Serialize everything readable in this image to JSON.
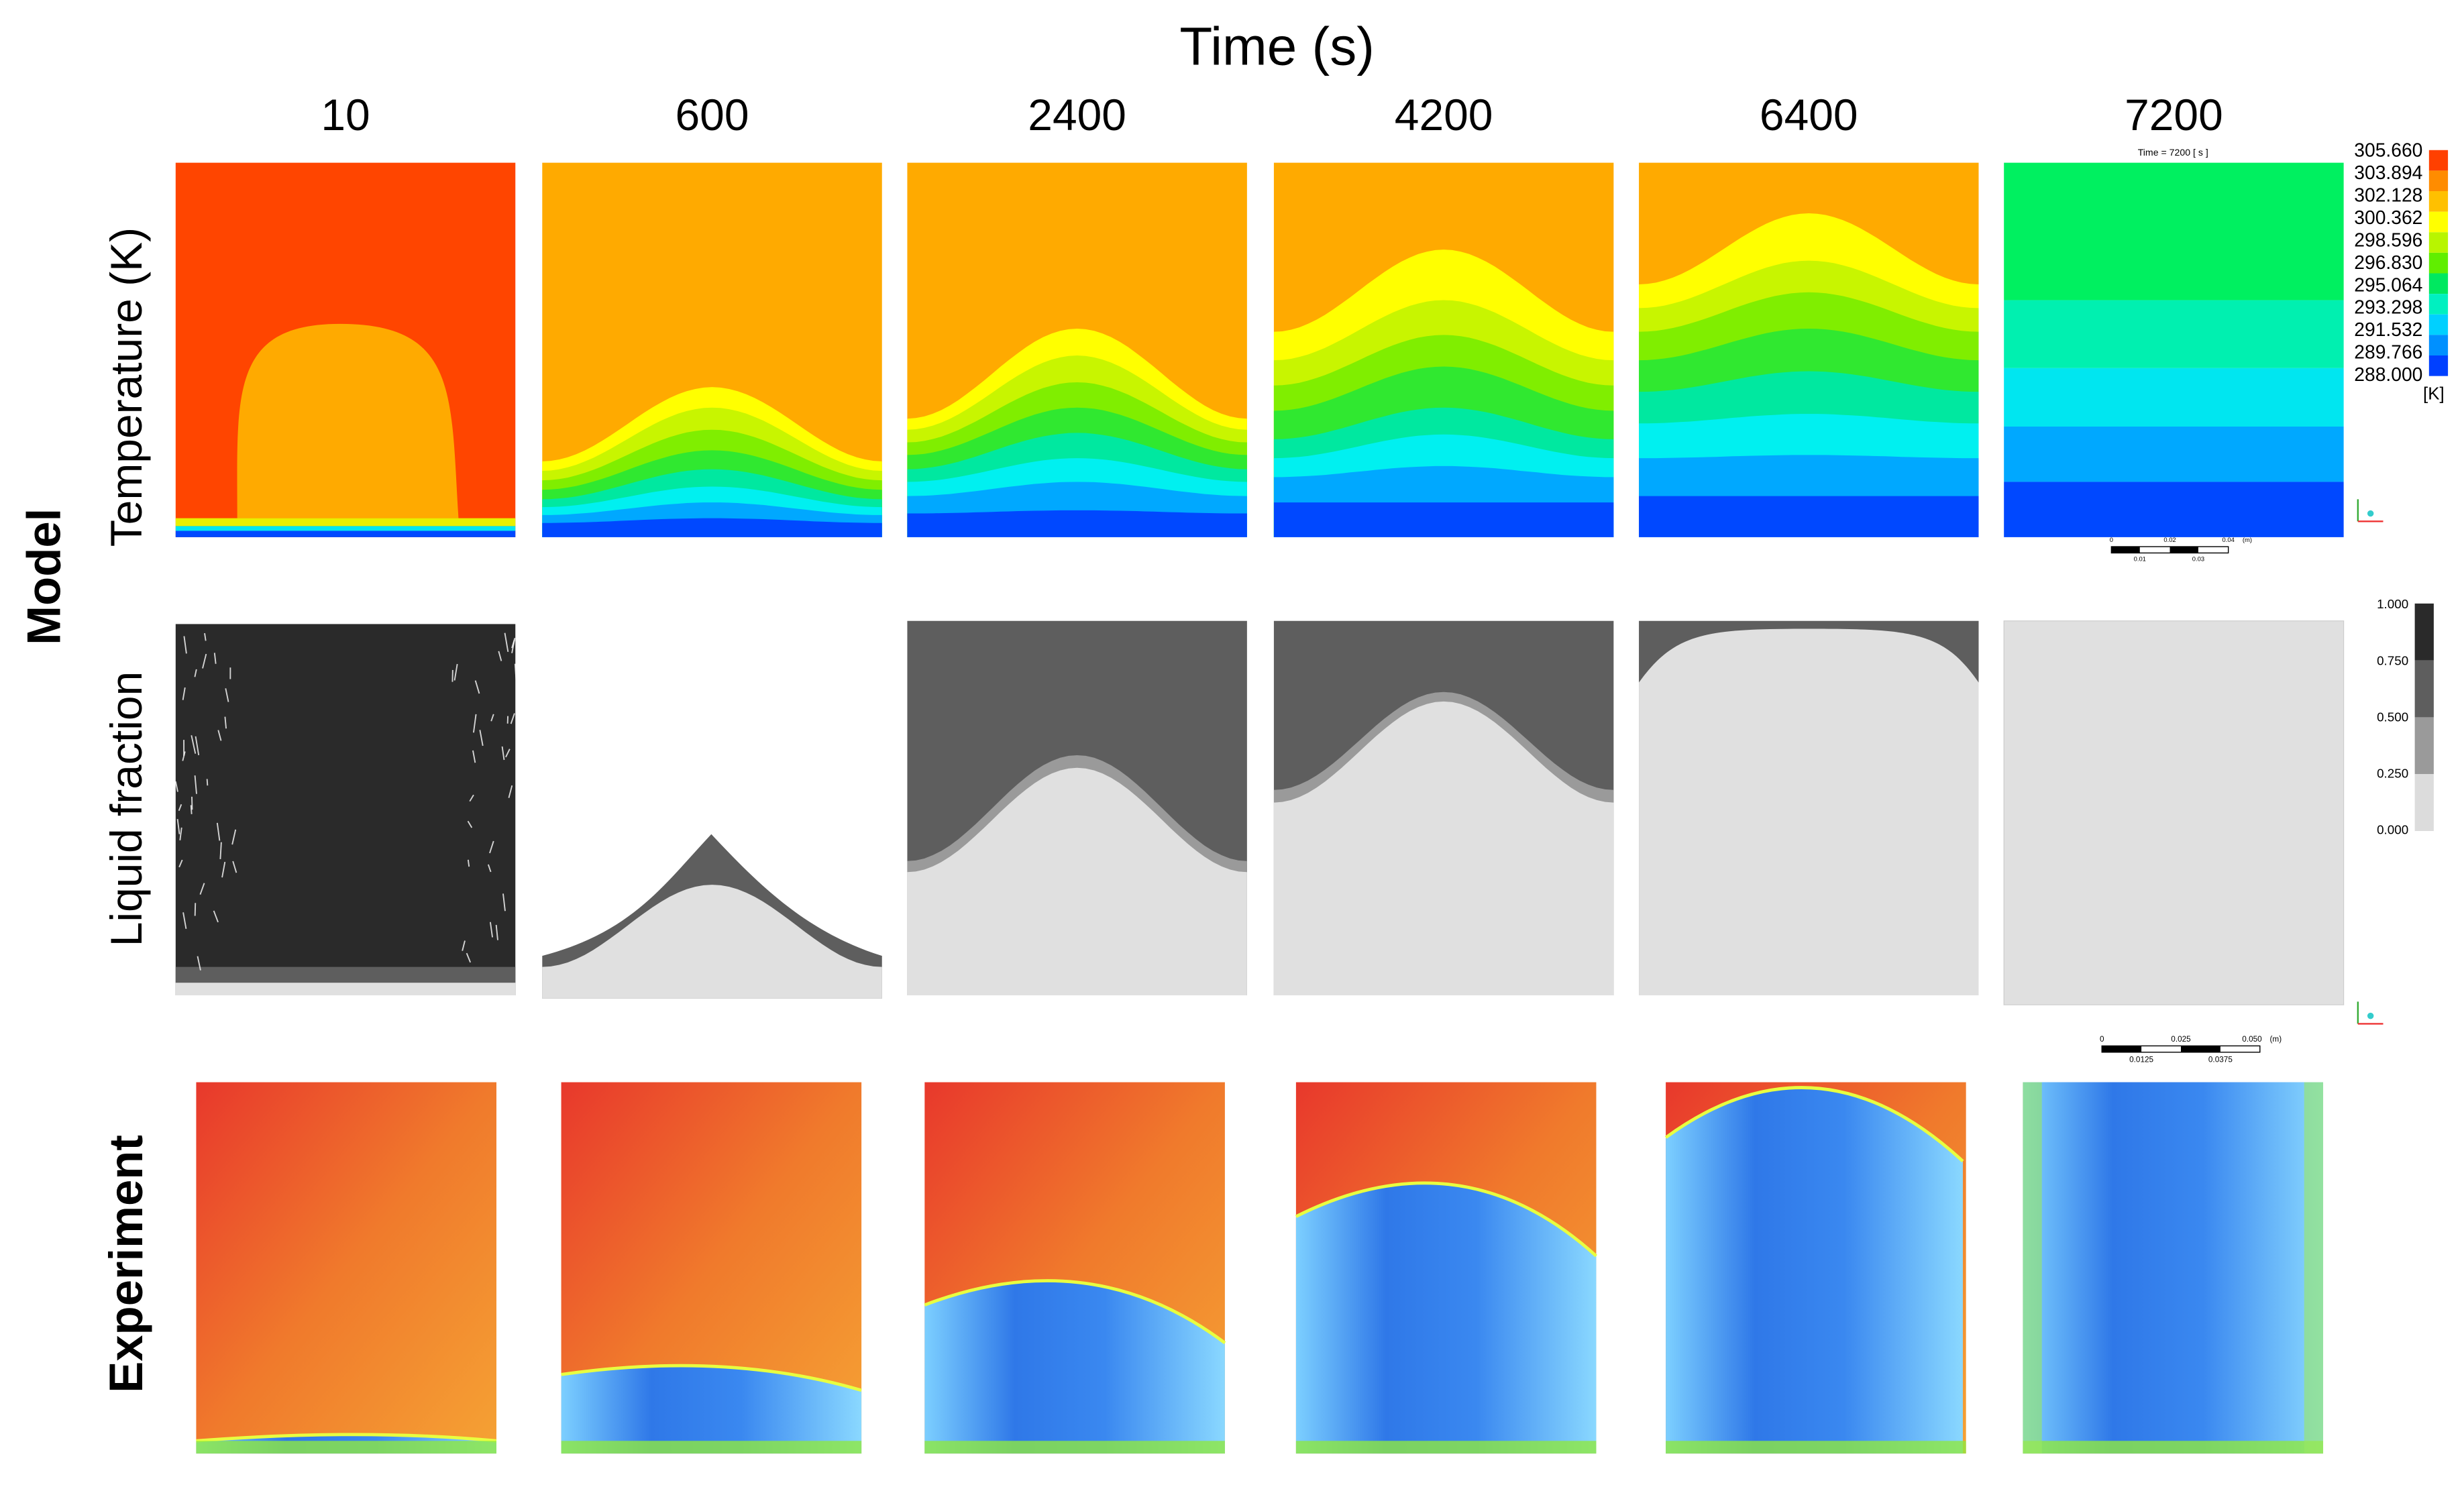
{
  "title": "Time (s)",
  "times": [
    "10",
    "600",
    "2400",
    "4200",
    "6400",
    "7200"
  ],
  "rows": {
    "model": "Model",
    "experiment": "Experiment",
    "temperature": "Temperature (K)",
    "liquid_fraction": "Liquid fraction"
  },
  "temperature_legend": {
    "time_stamp": "Time = 7200 [ s ]",
    "labels": [
      "305.660",
      "303.894",
      "302.128",
      "300.362",
      "298.596",
      "296.830",
      "295.064",
      "293.298",
      "291.532",
      "289.766",
      "288.000"
    ],
    "unit": "[K]"
  },
  "temperature_scale_bar": {
    "top": [
      "0",
      "0.02",
      "0.04",
      "(m)"
    ],
    "bottom": [
      "0.01",
      "0.03"
    ]
  },
  "liquid_fraction_legend": {
    "labels": [
      "1.000",
      "0.750",
      "0.500",
      "0.250",
      "0.000"
    ]
  },
  "liquid_scale_bar": {
    "top": [
      "0",
      "0.025",
      "0.050",
      "(m)"
    ],
    "bottom": [
      "0.0125",
      "0.0375"
    ]
  }
}
